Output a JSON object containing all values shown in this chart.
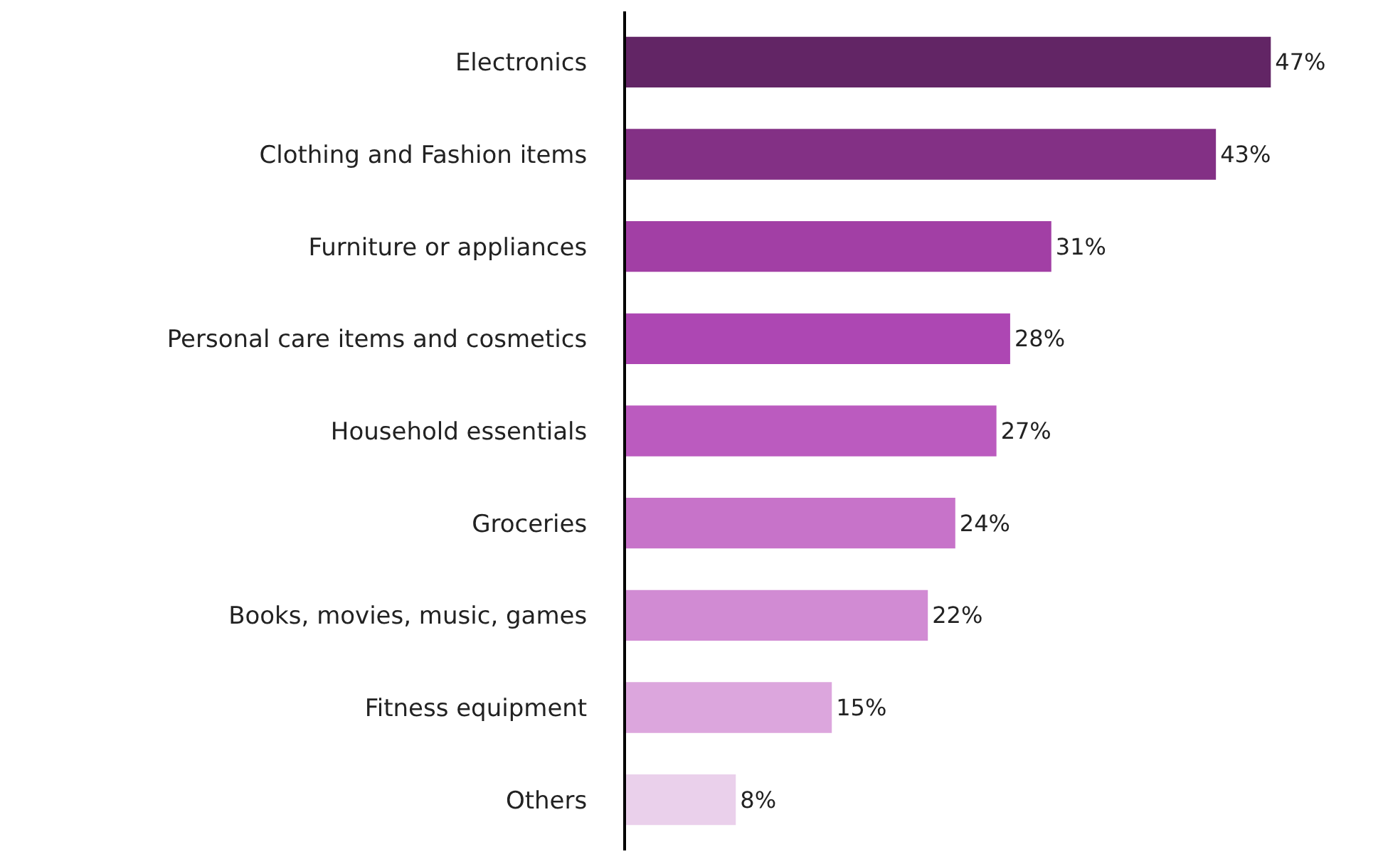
{
  "chart_data": {
    "type": "bar",
    "orientation": "horizontal",
    "categories": [
      "Electronics",
      "Clothing and Fashion items",
      "Furniture or appliances",
      "Personal care items and cosmetics",
      "Household essentials",
      "Groceries",
      "Books, movies, music, games",
      "Fitness equipment",
      "Others"
    ],
    "values": [
      47,
      43,
      31,
      28,
      27,
      24,
      22,
      15,
      8
    ],
    "colors": [
      "#622565",
      "#833085",
      "#a23fa5",
      "#ad47b3",
      "#bb5bbf",
      "#c773c9",
      "#d18bd3",
      "#dca6dd",
      "#ead0eb"
    ],
    "value_labels": [
      "47%",
      "43%",
      "31%",
      "28%",
      "27%",
      "24%",
      "22%",
      "15%",
      "8%"
    ],
    "tick_labels": "y"
  }
}
